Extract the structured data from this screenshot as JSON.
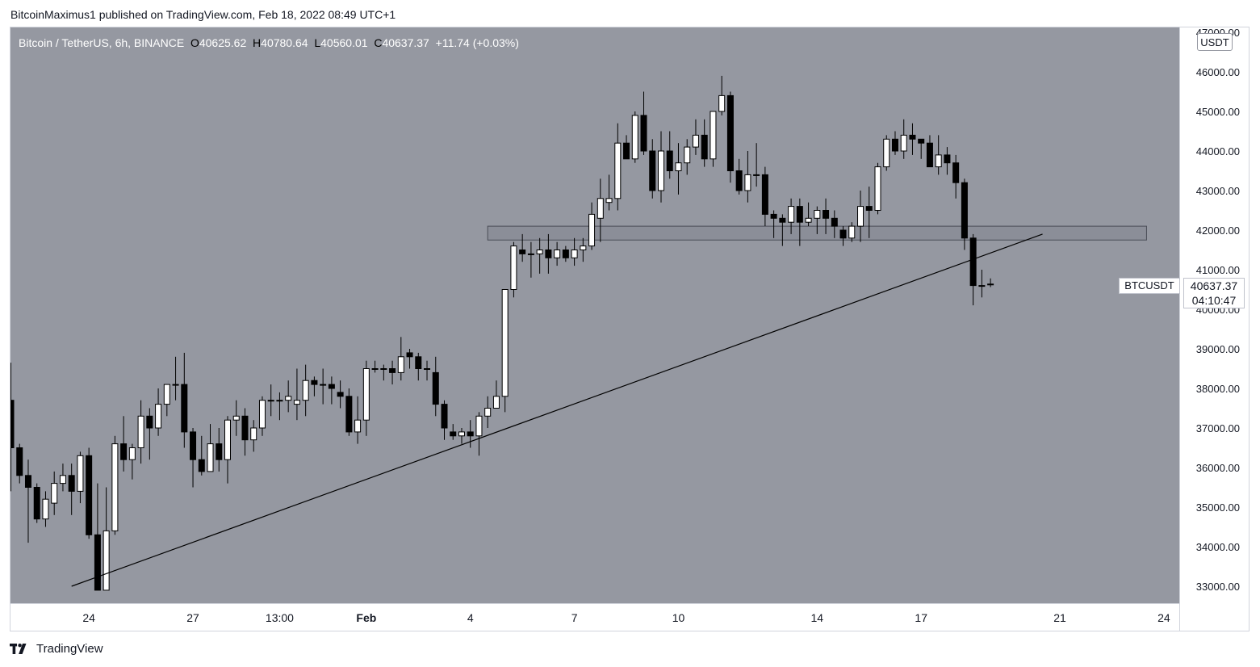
{
  "publish_line": "BitcoinMaximus1 published on TradingView.com, Feb 18, 2022 08:49 UTC+1",
  "legend": {
    "symbol": "Bitcoin / TetherUS, 6h, BINANCE",
    "o_key": "O",
    "o_val": "40625.62",
    "h_key": "H",
    "h_val": "40780.64",
    "l_key": "L",
    "l_val": "40560.01",
    "c_key": "C",
    "c_val": "40637.37",
    "change": "+11.74 (+0.03%)"
  },
  "currency": "USDT",
  "last_price": {
    "symbol": "BTCUSDT",
    "price": "40637.37",
    "countdown": "04:10:47"
  },
  "brand": "TradingView",
  "colors": {
    "background": "#9598a1",
    "up_candle": "#ffffff",
    "down_candle": "#000000",
    "wick": "#000000",
    "trendline": "#000000"
  },
  "chart_data": {
    "type": "candlestick",
    "interval": "6h",
    "ylim": [
      32600,
      47100
    ],
    "y_ticks": [
      {
        "value": 33000,
        "label": "33000.00"
      },
      {
        "value": 34000,
        "label": "34000.00"
      },
      {
        "value": 35000,
        "label": "35000.00"
      },
      {
        "value": 36000,
        "label": "36000.00"
      },
      {
        "value": 37000,
        "label": "37000.00"
      },
      {
        "value": 38000,
        "label": "38000.00"
      },
      {
        "value": 39000,
        "label": "39000.00"
      },
      {
        "value": 40000,
        "label": "40000.00"
      },
      {
        "value": 41000,
        "label": "41000.00"
      },
      {
        "value": 42000,
        "label": "42000.00"
      },
      {
        "value": 43000,
        "label": "43000.00"
      },
      {
        "value": 44000,
        "label": "44000.00"
      },
      {
        "value": 45000,
        "label": "45000.00"
      },
      {
        "value": 46000,
        "label": "46000.00"
      },
      {
        "value": 47000,
        "label": "47000.00"
      }
    ],
    "x_ticks": [
      {
        "bar": 9,
        "label": "24"
      },
      {
        "bar": 21,
        "label": "27"
      },
      {
        "bar": 31,
        "label": "13:00"
      },
      {
        "bar": 41,
        "label": "Feb"
      },
      {
        "bar": 53,
        "label": "4"
      },
      {
        "bar": 65,
        "label": "7"
      },
      {
        "bar": 77,
        "label": "10"
      },
      {
        "bar": 93,
        "label": "14"
      },
      {
        "bar": 105,
        "label": "17"
      },
      {
        "bar": 121,
        "label": "21"
      },
      {
        "bar": 133,
        "label": "24"
      }
    ],
    "candles": [
      [
        37700,
        38650,
        35400,
        36500
      ],
      [
        36500,
        36600,
        35600,
        35800
      ],
      [
        35800,
        36200,
        34100,
        35500
      ],
      [
        35500,
        35600,
        34600,
        34700
      ],
      [
        34700,
        35400,
        34500,
        35200
      ],
      [
        35100,
        35900,
        34800,
        35600
      ],
      [
        35600,
        36100,
        35400,
        35800
      ],
      [
        35800,
        36100,
        34800,
        35400
      ],
      [
        35400,
        36400,
        35100,
        36300
      ],
      [
        36300,
        36500,
        34200,
        34300
      ],
      [
        34300,
        35600,
        33000,
        32900
      ],
      [
        32900,
        35500,
        32900,
        34400
      ],
      [
        34400,
        36800,
        34300,
        36600
      ],
      [
        36600,
        37300,
        35900,
        36200
      ],
      [
        36200,
        36600,
        35700,
        36500
      ],
      [
        36500,
        37700,
        36100,
        37300
      ],
      [
        37300,
        37500,
        36200,
        37000
      ],
      [
        37000,
        38000,
        36800,
        37600
      ],
      [
        37600,
        38100,
        37300,
        38100
      ],
      [
        38100,
        38800,
        37700,
        38100
      ],
      [
        38100,
        38900,
        36500,
        36900
      ],
      [
        36900,
        37000,
        35500,
        36200
      ],
      [
        36200,
        36800,
        35800,
        35900
      ],
      [
        35900,
        37100,
        36000,
        36600
      ],
      [
        36600,
        37000,
        35900,
        36200
      ],
      [
        36200,
        37300,
        35600,
        37200
      ],
      [
        37200,
        37700,
        36800,
        37300
      ],
      [
        37300,
        37500,
        36300,
        36700
      ],
      [
        36700,
        37200,
        36400,
        37000
      ],
      [
        37000,
        37800,
        36800,
        37700
      ],
      [
        37700,
        38100,
        37300,
        37700
      ],
      [
        37700,
        37900,
        37200,
        37700
      ],
      [
        37700,
        38200,
        37400,
        37800
      ],
      [
        37600,
        38500,
        37200,
        37700
      ],
      [
        37700,
        38600,
        37300,
        38200
      ],
      [
        38200,
        38300,
        37800,
        38100
      ],
      [
        38100,
        38500,
        37600,
        38100
      ],
      [
        38100,
        38300,
        37600,
        38000
      ],
      [
        37900,
        38200,
        37500,
        37800
      ],
      [
        37800,
        38000,
        36800,
        36900
      ],
      [
        36900,
        37800,
        36600,
        37200
      ],
      [
        37200,
        38700,
        36800,
        38500
      ],
      [
        38500,
        38700,
        38400,
        38500
      ],
      [
        38500,
        38600,
        38200,
        38500
      ],
      [
        38500,
        38700,
        38100,
        38400
      ],
      [
        38400,
        39300,
        38200,
        38800
      ],
      [
        38900,
        39000,
        38500,
        38800
      ],
      [
        38800,
        38900,
        38200,
        38500
      ],
      [
        38500,
        38700,
        38200,
        38500
      ],
      [
        38400,
        38800,
        37300,
        37600
      ],
      [
        37600,
        37700,
        36700,
        37000
      ],
      [
        36900,
        37100,
        36700,
        36800
      ],
      [
        36800,
        37000,
        36600,
        36900
      ],
      [
        36900,
        37200,
        36500,
        36800
      ],
      [
        36800,
        37400,
        36300,
        37300
      ],
      [
        37300,
        37800,
        37000,
        37500
      ],
      [
        37500,
        38200,
        37500,
        37800
      ],
      [
        37800,
        40500,
        37400,
        40500
      ],
      [
        40500,
        41700,
        40300,
        41600
      ],
      [
        41500,
        41900,
        41200,
        41400
      ],
      [
        41400,
        41700,
        40800,
        41400
      ],
      [
        41400,
        41800,
        40900,
        41500
      ],
      [
        41500,
        41900,
        40900,
        41300
      ],
      [
        41300,
        41700,
        41100,
        41500
      ],
      [
        41500,
        41600,
        41200,
        41300
      ],
      [
        41300,
        41800,
        41100,
        41500
      ],
      [
        41500,
        41800,
        41200,
        41600
      ],
      [
        41600,
        42700,
        41500,
        42400
      ],
      [
        42300,
        43300,
        41700,
        42800
      ],
      [
        42700,
        43400,
        42500,
        42800
      ],
      [
        42800,
        44700,
        42500,
        44200
      ],
      [
        44200,
        44400,
        43800,
        43800
      ],
      [
        43800,
        45000,
        43700,
        44900
      ],
      [
        44900,
        45500,
        43900,
        44000
      ],
      [
        44000,
        44300,
        42800,
        43000
      ],
      [
        43000,
        44500,
        42700,
        44000
      ],
      [
        44000,
        44500,
        43300,
        43500
      ],
      [
        43500,
        44200,
        42900,
        43700
      ],
      [
        43700,
        44300,
        43400,
        44100
      ],
      [
        44100,
        44800,
        43900,
        44400
      ],
      [
        44400,
        44800,
        43600,
        43800
      ],
      [
        43800,
        45000,
        43600,
        45000
      ],
      [
        45000,
        45900,
        44900,
        45400
      ],
      [
        45400,
        45500,
        43200,
        43500
      ],
      [
        43500,
        43800,
        42900,
        43000
      ],
      [
        43000,
        44000,
        42700,
        43400
      ],
      [
        43400,
        44200,
        43100,
        43400
      ],
      [
        43400,
        43600,
        42100,
        42400
      ],
      [
        42400,
        42500,
        41800,
        42300
      ],
      [
        42300,
        42400,
        41600,
        42200
      ],
      [
        42200,
        42800,
        41900,
        42600
      ],
      [
        42600,
        42800,
        41600,
        42200
      ],
      [
        42200,
        42700,
        42100,
        42300
      ],
      [
        42300,
        42600,
        41900,
        42500
      ],
      [
        42500,
        42800,
        41900,
        42300
      ],
      [
        42300,
        42500,
        41800,
        42100
      ],
      [
        42000,
        42100,
        41600,
        41800
      ],
      [
        41800,
        42200,
        41700,
        42100
      ],
      [
        42100,
        43000,
        41700,
        42600
      ],
      [
        42600,
        43100,
        41800,
        42500
      ],
      [
        42500,
        43700,
        42400,
        43600
      ],
      [
        43600,
        44400,
        43500,
        44300
      ],
      [
        44300,
        44500,
        43900,
        44000
      ],
      [
        44000,
        44800,
        43800,
        44400
      ],
      [
        44400,
        44700,
        43900,
        44300
      ],
      [
        44300,
        44200,
        43800,
        44200
      ],
      [
        44200,
        44400,
        43600,
        43600
      ],
      [
        43600,
        44400,
        43400,
        43900
      ],
      [
        43900,
        44100,
        43400,
        43700
      ],
      [
        43700,
        43900,
        42800,
        43200
      ],
      [
        43200,
        43300,
        41500,
        41800
      ],
      [
        41800,
        41900,
        40100,
        40600
      ],
      [
        40600,
        41000,
        40300,
        40600
      ],
      [
        40625.62,
        40780.64,
        40560.01,
        40637.37
      ]
    ],
    "trendline": [
      {
        "bar": 7,
        "price": 33000
      },
      {
        "bar": 119,
        "price": 41900
      }
    ],
    "zone": {
      "from_bar": 55,
      "to_bar": 131,
      "low": 41750,
      "high": 42100
    }
  }
}
